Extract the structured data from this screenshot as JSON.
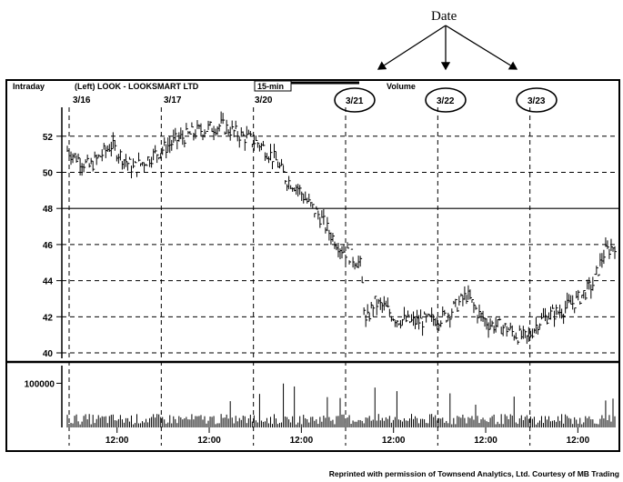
{
  "annotation": {
    "label": "Date"
  },
  "header": {
    "left": "Intraday",
    "instrument": "(Left)  LOOK - LOOKSMART LTD",
    "interval": "15-min",
    "right": "Volume"
  },
  "credit": "Reprinted with permission of Townsend Analytics, Ltd.  Courtesy of MB Trading",
  "chart_data": {
    "type": "line",
    "subtype": "intraday price bars with volume panel",
    "title": "",
    "days": [
      "3/16",
      "3/17",
      "3/20",
      "3/21",
      "3/22",
      "3/23"
    ],
    "circled_days": [
      "3/21",
      "3/22",
      "3/23"
    ],
    "price_axis": {
      "ticks": [
        40,
        42,
        44,
        46,
        48,
        50,
        52
      ],
      "range": [
        39.8,
        53.5
      ],
      "grid": "dashed",
      "solid_line_at": 48
    },
    "volume_axis": {
      "ticks": [
        100000
      ],
      "range": [
        0,
        140000
      ]
    },
    "x_tick_labels": [
      "12:00",
      "12:00",
      "12:00",
      "12:00",
      "12:00",
      "12:00"
    ],
    "series": [
      {
        "kind": "price",
        "approx_close_path": [
          [
            0.0,
            51.2
          ],
          [
            0.04,
            50.3
          ],
          [
            0.08,
            51.5
          ],
          [
            0.12,
            50.2
          ],
          [
            0.16,
            51.0
          ],
          [
            0.2,
            51.8
          ],
          [
            0.24,
            52.3
          ],
          [
            0.28,
            52.6
          ],
          [
            0.32,
            52.0
          ],
          [
            0.35,
            51.6
          ],
          [
            0.38,
            50.7
          ],
          [
            0.4,
            49.6
          ],
          [
            0.42,
            49.2
          ],
          [
            0.44,
            48.3
          ],
          [
            0.46,
            47.6
          ],
          [
            0.48,
            46.6
          ],
          [
            0.5,
            45.8
          ],
          [
            0.52,
            45.3
          ],
          [
            0.535,
            44.9
          ],
          [
            0.545,
            41.6
          ],
          [
            0.56,
            42.8
          ],
          [
            0.58,
            42.5
          ],
          [
            0.6,
            41.9
          ],
          [
            0.63,
            41.7
          ],
          [
            0.66,
            41.8
          ],
          [
            0.69,
            42.0
          ],
          [
            0.71,
            42.6
          ],
          [
            0.73,
            43.2
          ],
          [
            0.75,
            42.2
          ],
          [
            0.77,
            41.6
          ],
          [
            0.8,
            41.4
          ],
          [
            0.82,
            41.0
          ],
          [
            0.84,
            40.8
          ],
          [
            0.86,
            41.7
          ],
          [
            0.88,
            42.1
          ],
          [
            0.9,
            42.3
          ],
          [
            0.93,
            42.9
          ],
          [
            0.96,
            43.8
          ],
          [
            0.98,
            45.5
          ],
          [
            1.0,
            46.0
          ]
        ]
      },
      {
        "kind": "volume",
        "typical": 22000,
        "spike_max": 100000
      }
    ]
  }
}
